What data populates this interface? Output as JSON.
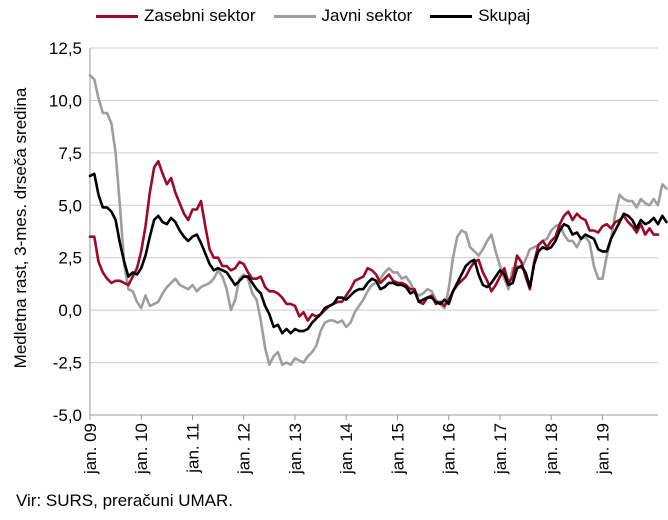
{
  "chart_data": {
    "type": "line",
    "ylabel": "Medletna rast, 3-mes. drseča sredina",
    "ylim": [
      -5.0,
      12.5
    ],
    "yticks": [
      "12,5",
      "10,0",
      "7,5",
      "5,0",
      "2,5",
      "0,0",
      "-2,5",
      "-5,0"
    ],
    "ytick_values": [
      12.5,
      10.0,
      7.5,
      5.0,
      2.5,
      0.0,
      -2.5,
      -5.0
    ],
    "x_start": "2009-01",
    "x_end": "2019-12",
    "xticks": [
      "jan. 09",
      "jan. 10",
      "jan. 11",
      "jan. 12",
      "jan. 13",
      "jan. 14",
      "jan. 15",
      "jan. 16",
      "jan. 17",
      "jan. 18",
      "jan. 19"
    ],
    "grid": "horizontal",
    "legend_position": "top",
    "series": [
      {
        "name": "Zasebni sektor",
        "color": "#9b0a2b",
        "values": [
          3.5,
          3.5,
          2.3,
          1.8,
          1.5,
          1.3,
          1.4,
          1.4,
          1.3,
          1.2,
          1.6,
          2.0,
          2.8,
          4.0,
          5.6,
          6.8,
          7.1,
          6.5,
          6.0,
          6.3,
          5.6,
          5.1,
          4.6,
          4.3,
          4.8,
          4.8,
          5.2,
          4.0,
          2.9,
          2.5,
          2.5,
          2.1,
          2.1,
          1.9,
          2.0,
          2.3,
          2.2,
          1.8,
          1.5,
          1.5,
          1.6,
          1.1,
          0.9,
          0.9,
          0.8,
          0.6,
          0.3,
          0.3,
          0.2,
          -0.3,
          -0.1,
          -0.5,
          -0.2,
          -0.3,
          -0.2,
          0.0,
          0.2,
          0.3,
          0.4,
          0.4,
          0.7,
          1.0,
          1.4,
          1.5,
          1.6,
          2.0,
          1.9,
          1.7,
          1.3,
          1.5,
          1.7,
          1.4,
          1.3,
          1.3,
          1.2,
          1.0,
          1.0,
          0.4,
          0.3,
          0.6,
          0.7,
          0.3,
          0.4,
          0.2,
          0.5,
          0.9,
          1.2,
          1.4,
          1.6,
          2.0,
          2.3,
          2.4,
          1.8,
          1.4,
          0.9,
          1.2,
          1.6,
          2.0,
          1.3,
          1.6,
          2.6,
          2.3,
          1.6,
          1.0,
          2.3,
          3.1,
          3.3,
          3.0,
          3.3,
          3.5,
          4.1,
          4.5,
          4.7,
          4.3,
          4.6,
          4.4,
          4.3,
          3.8,
          3.8,
          3.7,
          4.0,
          4.1,
          3.9,
          4.2,
          4.3,
          4.5,
          4.2,
          4.0,
          3.7,
          4.1,
          3.6,
          3.9,
          3.6,
          3.6
        ]
      },
      {
        "name": "Javni sektor",
        "color": "#9e9e9e",
        "values": [
          11.2,
          11.0,
          10.1,
          9.4,
          9.4,
          8.9,
          7.5,
          5.0,
          2.2,
          1.0,
          0.9,
          0.4,
          0.1,
          0.7,
          0.2,
          0.3,
          0.4,
          0.8,
          1.1,
          1.3,
          1.5,
          1.2,
          1.1,
          1.0,
          1.2,
          0.9,
          1.1,
          1.2,
          1.3,
          1.5,
          1.9,
          1.6,
          1.0,
          0.0,
          0.5,
          1.5,
          1.7,
          1.5,
          0.8,
          0.5,
          -0.5,
          -1.8,
          -2.6,
          -2.2,
          -2.0,
          -2.6,
          -2.5,
          -2.6,
          -2.3,
          -2.4,
          -2.5,
          -2.2,
          -2.0,
          -1.7,
          -1.0,
          -0.6,
          -0.5,
          -0.5,
          -0.6,
          -0.5,
          -0.8,
          -0.6,
          -0.1,
          0.2,
          0.5,
          0.9,
          1.2,
          1.3,
          1.5,
          1.8,
          2.0,
          1.8,
          1.8,
          1.5,
          1.6,
          1.3,
          0.9,
          0.7,
          0.8,
          1.0,
          0.9,
          0.5,
          0.3,
          0.1,
          1.0,
          2.5,
          3.5,
          3.8,
          3.7,
          3.0,
          2.8,
          2.6,
          2.9,
          3.3,
          3.6,
          2.8,
          2.1,
          1.5,
          1.0,
          2.0,
          2.1,
          2.0,
          2.4,
          2.9,
          3.0,
          3.1,
          3.3,
          3.4,
          3.8,
          4.0,
          4.1,
          3.6,
          3.3,
          3.3,
          3.0,
          3.4,
          3.5,
          3.2,
          2.1,
          1.5,
          1.5,
          2.6,
          3.4,
          4.6,
          5.5,
          5.3,
          5.2,
          5.2,
          4.9,
          5.3,
          5.1,
          5.0,
          5.3,
          5.0,
          6.0,
          5.8
        ]
      },
      {
        "name": "Skupaj",
        "color": "#000000",
        "values": [
          6.4,
          6.5,
          5.5,
          4.9,
          4.9,
          4.7,
          4.3,
          3.2,
          2.3,
          1.6,
          1.8,
          1.7,
          2.0,
          2.6,
          3.5,
          4.3,
          4.5,
          4.2,
          4.1,
          4.4,
          4.2,
          3.8,
          3.5,
          3.3,
          3.5,
          3.6,
          3.2,
          2.7,
          2.2,
          1.9,
          2.0,
          1.9,
          1.8,
          1.5,
          1.2,
          1.4,
          1.6,
          1.6,
          1.3,
          1.0,
          0.8,
          0.2,
          -0.2,
          -0.8,
          -0.7,
          -1.1,
          -0.9,
          -1.1,
          -0.9,
          -1.0,
          -1.0,
          -0.9,
          -0.6,
          -0.4,
          -0.2,
          0.1,
          0.2,
          0.3,
          0.6,
          0.6,
          0.5,
          0.7,
          0.9,
          1.0,
          1.0,
          1.3,
          1.5,
          1.4,
          1.0,
          1.1,
          1.3,
          1.3,
          1.2,
          1.2,
          1.1,
          0.8,
          0.9,
          0.4,
          0.5,
          0.6,
          0.6,
          0.4,
          0.3,
          0.5,
          0.3,
          0.9,
          1.3,
          1.7,
          2.1,
          2.3,
          2.4,
          1.7,
          1.2,
          1.1,
          1.3,
          1.6,
          1.9,
          1.7,
          1.2,
          1.3,
          2.0,
          2.1,
          1.8,
          1.1,
          2.2,
          2.8,
          3.0,
          2.9,
          3.0,
          3.3,
          3.8,
          4.1,
          4.0,
          3.6,
          3.7,
          3.4,
          3.6,
          3.5,
          3.4,
          2.9,
          2.8,
          2.8,
          3.4,
          3.8,
          4.2,
          4.6,
          4.5,
          4.3,
          3.9,
          4.3,
          4.1,
          4.2,
          4.4,
          4.1,
          4.5,
          4.2
        ]
      }
    ],
    "source": "Vir: SURS, preračuni UMAR."
  }
}
